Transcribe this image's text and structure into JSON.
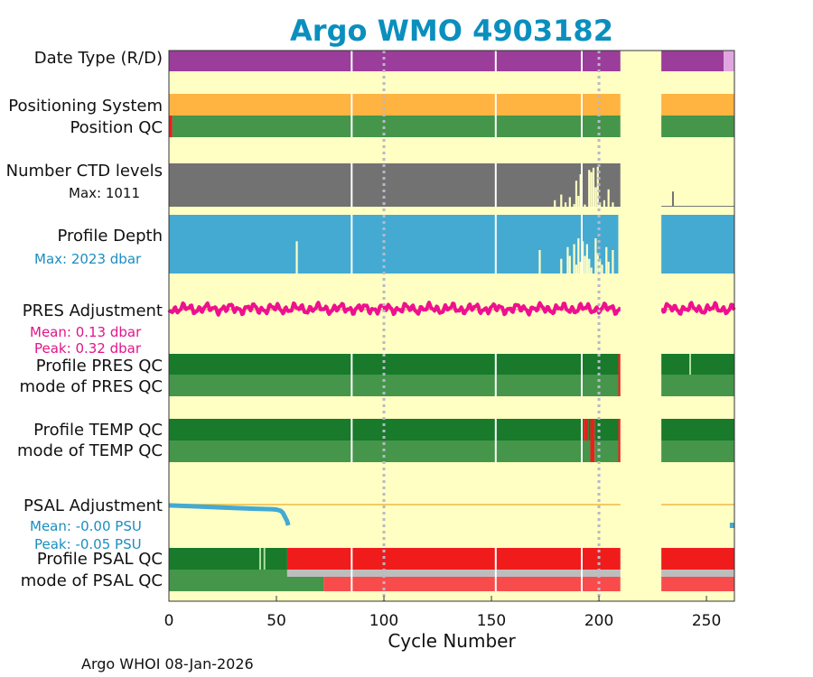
{
  "header": {
    "title": "Argo WMO 4903182"
  },
  "footer": {
    "text": "Argo WHOI 08-Jan-2026"
  },
  "rows": {
    "date_type": "Date Type (R/D)",
    "positioning_system": "Positioning System",
    "position_qc": "Position QC",
    "n_ctd_levels": "Number CTD levels",
    "n_ctd_max": "Max: 1011",
    "profile_depth": "Profile Depth",
    "profile_depth_max": "Max: 2023 dbar",
    "pres_adjustment": "PRES Adjustment",
    "pres_mean": "Mean: 0.13 dbar",
    "pres_peak": "Peak: 0.32 dbar",
    "profile_pres_qc": "Profile PRES QC",
    "mode_pres_qc": "mode of PRES QC",
    "profile_temp_qc": "Profile TEMP QC",
    "mode_temp_qc": "mode of TEMP QC",
    "psal_adjustment": "PSAL Adjustment",
    "psal_mean": "Mean: -0.00 PSU",
    "psal_peak": "Peak: -0.05 PSU",
    "profile_psal_qc": "Profile PSAL QC",
    "mode_psal_qc": "mode of PSAL QC"
  },
  "colors": {
    "background": "#ffffc4",
    "purple": "#9b3d9a",
    "light_purple": "#e0a6e0",
    "orange": "#ffb340",
    "green": "#45964a",
    "dark_green": "#187a2a",
    "red": "#f01c1c",
    "light_red": "#f84c4c",
    "gray": "#727272",
    "light_gray": "#bdbdbd",
    "blue": "#44aad2",
    "magenta": "#ee1090",
    "psal_blue": "#44aad2",
    "adjust_line": "#f0b840",
    "pres_note": "#e0168a",
    "depth_note": "#1b8ec0",
    "psal_note": "#1b8ec0"
  },
  "chart_data": {
    "type": "bar",
    "xlabel": "Cycle Number",
    "xlim": [
      0,
      263
    ],
    "xticks": [
      0,
      50,
      100,
      150,
      200,
      250
    ],
    "gap": [
      210,
      229
    ],
    "white_gridlines": [
      85,
      152,
      192
    ],
    "dotted_gridlines": [
      100,
      200
    ],
    "tracks": [
      {
        "id": "date_type",
        "segments": [
          [
            0,
            210,
            "purple"
          ],
          [
            229,
            258,
            "purple"
          ],
          [
            258,
            263,
            "light_purple"
          ]
        ]
      },
      {
        "id": "positioning_system",
        "segments": [
          [
            0,
            210,
            "orange"
          ],
          [
            229,
            263,
            "orange"
          ]
        ]
      },
      {
        "id": "position_qc",
        "segments": [
          [
            0,
            1.5,
            "red"
          ],
          [
            1.5,
            210,
            "green"
          ],
          [
            229,
            263,
            "green"
          ]
        ]
      },
      {
        "id": "profile_pres_qc",
        "segments": [
          [
            0,
            209,
            "dark_green"
          ],
          [
            209,
            210,
            "red"
          ],
          [
            229,
            263,
            "dark_green"
          ]
        ],
        "marks": [
          242
        ]
      },
      {
        "id": "mode_pres_qc",
        "segments": [
          [
            0,
            209,
            "green"
          ],
          [
            209,
            210,
            "red"
          ],
          [
            229,
            263,
            "green"
          ]
        ]
      },
      {
        "id": "profile_temp_qc",
        "segments": [
          [
            0,
            193,
            "dark_green"
          ],
          [
            193,
            195,
            "red"
          ],
          [
            195,
            196,
            "dark_green"
          ],
          [
            196,
            198,
            "red"
          ],
          [
            198,
            209,
            "dark_green"
          ],
          [
            209,
            210,
            "red"
          ],
          [
            229,
            263,
            "dark_green"
          ]
        ]
      },
      {
        "id": "mode_temp_qc",
        "segments": [
          [
            0,
            196,
            "green"
          ],
          [
            196,
            198,
            "red"
          ],
          [
            198,
            209,
            "green"
          ],
          [
            209,
            210,
            "red"
          ],
          [
            229,
            263,
            "green"
          ]
        ]
      },
      {
        "id": "profile_psal_qc",
        "segments": [
          [
            0,
            55,
            "dark_green"
          ],
          [
            55,
            210,
            "red"
          ],
          [
            229,
            263,
            "red"
          ]
        ],
        "marks": [
          42,
          44
        ]
      },
      {
        "id": "mode_psal_qc",
        "segments": [
          [
            0,
            55,
            "green"
          ],
          [
            55,
            210,
            "light_gray"
          ],
          [
            229,
            263,
            "light_gray"
          ]
        ]
      },
      {
        "id": "mode_psal_qc_lower",
        "segments": [
          [
            0,
            72,
            "green"
          ],
          [
            72,
            210,
            "light_red"
          ],
          [
            229,
            263,
            "light_red"
          ]
        ]
      }
    ],
    "n_ctd_levels": {
      "max": 1011,
      "full_range": [
        0,
        210
      ],
      "dropouts": [
        [
          179,
          0.85
        ],
        [
          182,
          0.72
        ],
        [
          184,
          0.9
        ],
        [
          186,
          0.78
        ],
        [
          188,
          0.94
        ],
        [
          189,
          0.4
        ],
        [
          190,
          0.75
        ],
        [
          191,
          0.25
        ],
        [
          193,
          0.95
        ],
        [
          195,
          0.15
        ],
        [
          196,
          0.2
        ],
        [
          197,
          0.1
        ],
        [
          198,
          0.55
        ],
        [
          199,
          0.08
        ],
        [
          200,
          0.9
        ],
        [
          202,
          0.85
        ],
        [
          204,
          0.6
        ],
        [
          206,
          0.9
        ]
      ],
      "after_gap": [
        [
          229,
          263,
          0.02
        ],
        [
          234,
          0.35
        ]
      ]
    },
    "profile_depth": {
      "max": 2023,
      "full_range": [
        0,
        209
      ],
      "dropouts": [
        [
          59,
          0.55
        ],
        [
          172,
          0.4
        ],
        [
          182,
          0.25
        ],
        [
          185,
          0.45
        ],
        [
          186,
          0.3
        ],
        [
          188,
          0.5
        ],
        [
          189,
          0.15
        ],
        [
          190,
          0.6
        ],
        [
          191,
          0.2
        ],
        [
          192,
          0.55
        ],
        [
          193,
          0.3
        ],
        [
          194,
          0.5
        ],
        [
          195,
          0.25
        ],
        [
          196,
          0.1
        ],
        [
          198,
          0.6
        ],
        [
          199,
          0.35
        ],
        [
          200,
          0.25
        ],
        [
          201,
          0.15
        ],
        [
          203,
          0.45
        ],
        [
          204,
          0.2
        ],
        [
          206,
          0.4
        ]
      ],
      "after_gap": [
        229,
        263
      ]
    },
    "pres_adjustment": {
      "mean": 0.13,
      "peak": 0.32,
      "baseline": 0,
      "ranges": [
        [
          0,
          210
        ],
        [
          229,
          263
        ]
      ]
    },
    "psal_adjustment": {
      "mean": -0.0,
      "peak": -0.05,
      "baseline": 0,
      "points": [
        [
          0,
          -0.002
        ],
        [
          10,
          -0.004
        ],
        [
          20,
          -0.006
        ],
        [
          30,
          -0.008
        ],
        [
          40,
          -0.01
        ],
        [
          48,
          -0.011
        ],
        [
          50,
          -0.012
        ],
        [
          52,
          -0.015
        ],
        [
          53,
          -0.02
        ],
        [
          54,
          -0.03
        ],
        [
          55,
          -0.04
        ],
        [
          55.5,
          -0.05
        ]
      ],
      "after_gap": [
        [
          260,
          -0.05
        ],
        [
          263,
          -0.05
        ]
      ]
    }
  }
}
